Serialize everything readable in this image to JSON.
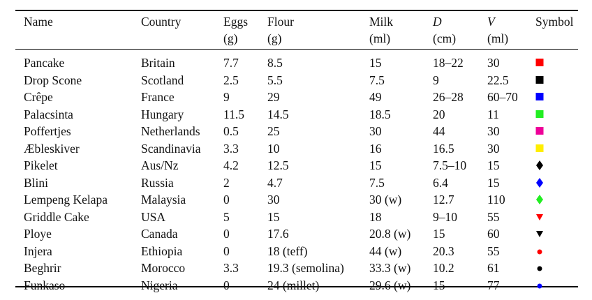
{
  "table": {
    "headers": {
      "name": "Name",
      "country": "Country",
      "eggs": "Eggs",
      "eggs_unit": "(g)",
      "flour": "Flour",
      "flour_unit": "(g)",
      "milk": "Milk",
      "milk_unit": "(ml)",
      "d": "D",
      "d_unit": "(cm)",
      "v": "V",
      "v_unit": "(ml)",
      "symbol": "Symbol"
    },
    "rows": [
      {
        "name": "Pancake",
        "country": "Britain",
        "eggs": "7.7",
        "flour": "8.5",
        "milk": "15",
        "d": "18–22",
        "v": "30",
        "symbol": "square",
        "color": "#ff0000"
      },
      {
        "name": "Drop Scone",
        "country": "Scotland",
        "eggs": "2.5",
        "flour": "5.5",
        "milk": "7.5",
        "d": "9",
        "v": "22.5",
        "symbol": "square",
        "color": "#000000"
      },
      {
        "name": "Crêpe",
        "country": "France",
        "eggs": "9",
        "flour": "29",
        "milk": "49",
        "d": "26–28",
        "v": "60–70",
        "symbol": "square",
        "color": "#0000ff"
      },
      {
        "name": "Palacsinta",
        "country": "Hungary",
        "eggs": "11.5",
        "flour": "14.5",
        "milk": "18.5",
        "d": "20",
        "v": "11",
        "symbol": "square",
        "color": "#22ee22"
      },
      {
        "name": "Poffertjes",
        "country": "Netherlands",
        "eggs": "0.5",
        "flour": "25",
        "milk": "30",
        "d": "44",
        "v": "30",
        "symbol": "square",
        "color": "#ee0099"
      },
      {
        "name": "Æbleskiver",
        "country": "Scandinavia",
        "eggs": "3.3",
        "flour": "10",
        "milk": "16",
        "d": "16.5",
        "v": "30",
        "symbol": "square",
        "color": "#ffee00"
      },
      {
        "name": "Pikelet",
        "country": "Aus/Nz",
        "eggs": "4.2",
        "flour": "12.5",
        "milk": "15",
        "d": "7.5–10",
        "v": "15",
        "symbol": "diamond",
        "color": "#000000"
      },
      {
        "name": "Blini",
        "country": "Russia",
        "eggs": "2",
        "flour": "4.7",
        "milk": "7.5",
        "d": "6.4",
        "v": "15",
        "symbol": "diamond",
        "color": "#0000ff"
      },
      {
        "name": "Lempeng Kelapa",
        "country": "Malaysia",
        "eggs": "0",
        "flour": "30",
        "milk": "30 (w)",
        "d": "12.7",
        "v": "110",
        "symbol": "diamond",
        "color": "#22ee22"
      },
      {
        "name": "Griddle Cake",
        "country": "USA",
        "eggs": "5",
        "flour": "15",
        "milk": "18",
        "d": "9–10",
        "v": "55",
        "symbol": "triangle",
        "color": "#ff0000"
      },
      {
        "name": "Ploye",
        "country": "Canada",
        "eggs": "0",
        "flour": "17.6",
        "milk": "20.8 (w)",
        "d": "15",
        "v": "60",
        "symbol": "triangle",
        "color": "#000000"
      },
      {
        "name": "Injera",
        "country": "Ethiopia",
        "eggs": "0",
        "flour": "18 (teff)",
        "milk": "44 (w)",
        "d": "20.3",
        "v": "55",
        "symbol": "circle",
        "color": "#ff0000"
      },
      {
        "name": "Beghrir",
        "country": "Morocco",
        "eggs": "3.3",
        "flour": "19.3 (semolina)",
        "milk": "33.3 (w)",
        "d": "10.2",
        "v": "61",
        "symbol": "circle",
        "color": "#000000"
      },
      {
        "name": "Funkaso",
        "country": "Nigeria",
        "eggs": "0",
        "flour": "24 (millet)",
        "milk": "29.6 (w)",
        "d": "15",
        "v": "77",
        "symbol": "circle",
        "color": "#0000ff"
      }
    ]
  }
}
